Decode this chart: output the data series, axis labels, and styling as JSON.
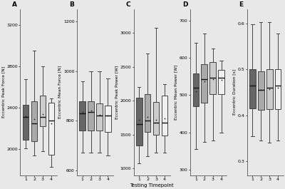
{
  "panels": [
    {
      "label": "A",
      "ylabel": "Eccentric Peak Force [N]",
      "ylim": [
        1750,
        3350
      ],
      "yticks": [
        2000,
        2400,
        2800,
        3200
      ],
      "boxes": [
        {
          "med": 2310,
          "q1": 2090,
          "q3": 2430,
          "whislo": 2010,
          "whishi": 2680,
          "mean": 2320
        },
        {
          "med": 2250,
          "q1": 2080,
          "q3": 2460,
          "whislo": 1940,
          "whishi": 2950,
          "mean": 2290
        },
        {
          "med": 2310,
          "q1": 2220,
          "q3": 2520,
          "whislo": 1980,
          "whishi": 2800,
          "mean": 2340
        },
        {
          "med": 2280,
          "q1": 1950,
          "q3": 2450,
          "whislo": 1830,
          "whishi": 2490,
          "mean": 2250
        }
      ]
    },
    {
      "label": "B",
      "ylabel": "Eccentric Mean Force [N]",
      "ylim": [
        580,
        1250
      ],
      "yticks": [
        600,
        800,
        1000,
        1200
      ],
      "boxes": [
        {
          "med": 830,
          "q1": 760,
          "q3": 880,
          "whislo": 670,
          "whishi": 960,
          "mean": 835
        },
        {
          "med": 835,
          "q1": 760,
          "q3": 880,
          "whislo": 670,
          "whishi": 1000,
          "mean": 840
        },
        {
          "med": 820,
          "q1": 760,
          "q3": 870,
          "whislo": 670,
          "whishi": 1000,
          "mean": 825
        },
        {
          "med": 820,
          "q1": 755,
          "q3": 860,
          "whislo": 660,
          "whishi": 970,
          "mean": 820
        }
      ]
    },
    {
      "label": "C",
      "ylabel": "Eccentric Peak Power [W]",
      "ylim": [
        900,
        3350
      ],
      "yticks": [
        1000,
        1500,
        2000,
        2500,
        3000
      ],
      "boxes": [
        {
          "med": 1650,
          "q1": 1340,
          "q3": 2050,
          "whislo": 1080,
          "whishi": 2200,
          "mean": 1720
        },
        {
          "med": 1710,
          "q1": 1540,
          "q3": 2100,
          "whislo": 1180,
          "whishi": 2700,
          "mean": 1760
        },
        {
          "med": 1680,
          "q1": 1500,
          "q3": 1980,
          "whislo": 1230,
          "whishi": 3080,
          "mean": 1720
        },
        {
          "med": 1680,
          "q1": 1490,
          "q3": 2080,
          "whislo": 1230,
          "whishi": 2250,
          "mean": 1740
        }
      ]
    },
    {
      "label": "D",
      "ylabel": "Eccentric Mean Power [W]",
      "ylim": [
        285,
        730
      ],
      "yticks": [
        300,
        400,
        500,
        600,
        700
      ],
      "boxes": [
        {
          "med": 520,
          "q1": 470,
          "q3": 558,
          "whislo": 355,
          "whishi": 640,
          "mean": 510
        },
        {
          "med": 542,
          "q1": 480,
          "q3": 582,
          "whislo": 375,
          "whishi": 665,
          "mean": 537
        },
        {
          "med": 547,
          "q1": 502,
          "q3": 588,
          "whislo": 378,
          "whishi": 625,
          "mean": 543
        },
        {
          "med": 547,
          "q1": 502,
          "q3": 568,
          "whislo": 400,
          "whishi": 592,
          "mean": 540
        }
      ]
    },
    {
      "label": "E",
      "ylabel": "Eccentric Duration [s]",
      "ylim": [
        0.27,
        0.63
      ],
      "yticks": [
        0.3,
        0.4,
        0.5,
        0.6
      ],
      "boxes": [
        {
          "med": 0.465,
          "q1": 0.415,
          "q3": 0.5,
          "whislo": 0.355,
          "whishi": 0.598,
          "mean": 0.465
        },
        {
          "med": 0.455,
          "q1": 0.412,
          "q3": 0.495,
          "whislo": 0.345,
          "whishi": 0.602,
          "mean": 0.455
        },
        {
          "med": 0.46,
          "q1": 0.413,
          "q3": 0.5,
          "whislo": 0.34,
          "whishi": 0.602,
          "mean": 0.457
        },
        {
          "med": 0.465,
          "q1": 0.413,
          "q3": 0.5,
          "whislo": 0.345,
          "whishi": 0.578,
          "mean": 0.46
        }
      ]
    }
  ],
  "box_colors": [
    "#666666",
    "#aaaaaa",
    "#cccccc",
    "#f0f0f0"
  ],
  "box_edge_color": "#444444",
  "median_color": "#111111",
  "mean_marker_color": "#222222",
  "xlabel": "Testing Timepoint",
  "xticks": [
    1,
    2,
    3,
    4
  ],
  "background_color": "#e8e8e8"
}
